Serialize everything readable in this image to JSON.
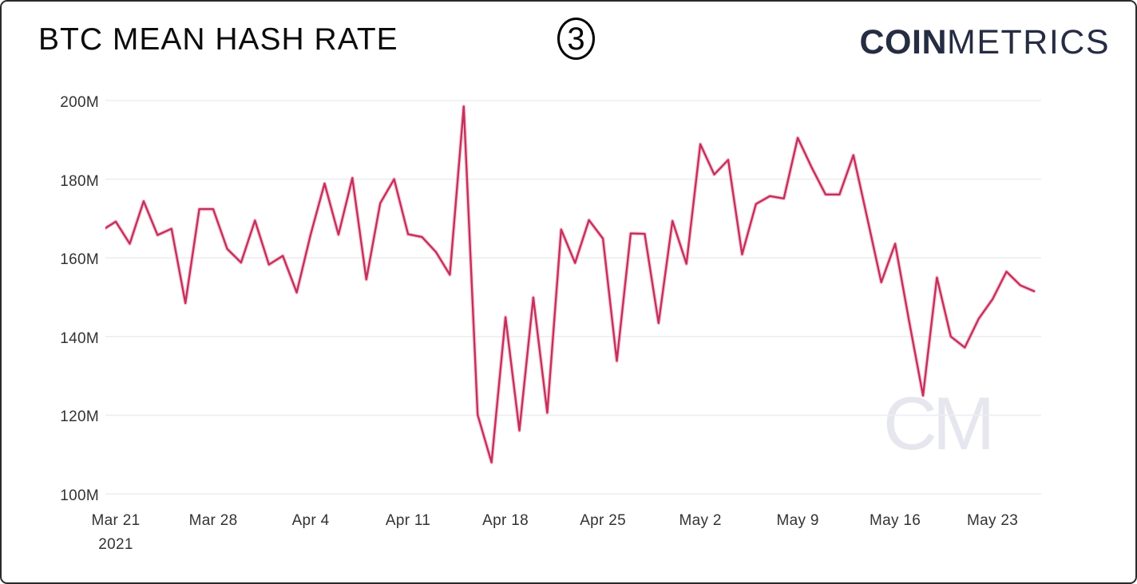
{
  "header": {
    "title": "BTC MEAN HASH RATE",
    "slide_number": "3",
    "logo": {
      "bold": "COIN",
      "light": "METRICS",
      "color": "#262c42"
    }
  },
  "chart_data": {
    "type": "line",
    "title": "BTC MEAN HASH RATE",
    "xlabel": "",
    "ylabel": "",
    "y_unit_suffix": "M",
    "ylim": [
      100,
      200
    ],
    "grid": "horizontal",
    "legend": "none",
    "line_color": "#c52f5a",
    "line_halo_color": "#f0a4bc",
    "grid_color": "#edeef2",
    "axis_text_color": "#333333",
    "watermark": "CM",
    "y_ticks": [
      200,
      180,
      160,
      140,
      120,
      100
    ],
    "y_tick_labels": [
      "200M",
      "180M",
      "160M",
      "140M",
      "120M",
      "100M"
    ],
    "x_ticks": [
      {
        "label": "Mar 21",
        "sublabel": "2021",
        "index": 1
      },
      {
        "label": "Mar 28",
        "sublabel": "",
        "index": 8
      },
      {
        "label": "Apr 4",
        "sublabel": "",
        "index": 15
      },
      {
        "label": "Apr 11",
        "sublabel": "",
        "index": 22
      },
      {
        "label": "Apr 18",
        "sublabel": "",
        "index": 29
      },
      {
        "label": "Apr 25",
        "sublabel": "",
        "index": 36
      },
      {
        "label": "May 2",
        "sublabel": "",
        "index": 43
      },
      {
        "label": "May 9",
        "sublabel": "",
        "index": 50
      },
      {
        "label": "May 16",
        "sublabel": "",
        "index": 57
      },
      {
        "label": "May 23",
        "sublabel": "",
        "index": 64
      }
    ],
    "series": [
      {
        "name": "BTC mean hash rate",
        "dates": [
          "Mar 20",
          "Mar 21",
          "Mar 22",
          "Mar 23",
          "Mar 24",
          "Mar 25",
          "Mar 26",
          "Mar 27",
          "Mar 28",
          "Mar 29",
          "Mar 30",
          "Mar 31",
          "Apr 1",
          "Apr 2",
          "Apr 3",
          "Apr 4",
          "Apr 5",
          "Apr 6",
          "Apr 7",
          "Apr 8",
          "Apr 9",
          "Apr 10",
          "Apr 11",
          "Apr 12",
          "Apr 13",
          "Apr 14",
          "Apr 15",
          "Apr 16",
          "Apr 17",
          "Apr 18",
          "Apr 19",
          "Apr 20",
          "Apr 21",
          "Apr 22",
          "Apr 23",
          "Apr 24",
          "Apr 25",
          "Apr 26",
          "Apr 27",
          "Apr 28",
          "Apr 29",
          "Apr 30",
          "May 1",
          "May 2",
          "May 3",
          "May 4",
          "May 5",
          "May 6",
          "May 7",
          "May 8",
          "May 9",
          "May 10",
          "May 11",
          "May 12",
          "May 13",
          "May 14",
          "May 15",
          "May 16",
          "May 17",
          "May 18",
          "May 19",
          "May 20",
          "May 21",
          "May 22",
          "May 23",
          "May 24",
          "May 25",
          "May 26"
        ],
        "values": [
          167.0,
          169.2,
          163.6,
          174.4,
          165.8,
          167.4,
          148.5,
          172.4,
          172.4,
          162.3,
          158.8,
          169.5,
          158.3,
          160.5,
          151.2,
          165.9,
          178.9,
          165.9,
          180.3,
          154.5,
          173.9,
          180.0,
          166.0,
          165.3,
          161.5,
          155.7,
          198.5,
          120.1,
          108.0,
          144.9,
          116.1,
          149.9,
          120.6,
          167.2,
          158.7,
          169.6,
          164.9,
          133.8,
          166.2,
          166.1,
          143.4,
          169.4,
          158.5,
          188.9,
          181.2,
          184.9,
          160.9,
          173.7,
          175.7,
          175.1,
          190.5,
          183.0,
          176.1,
          176.1,
          186.1,
          170.0,
          153.8,
          163.6,
          144.0,
          125.0,
          155.0,
          140.0,
          137.2,
          144.5,
          149.5,
          156.5,
          153.0,
          151.5
        ]
      }
    ]
  }
}
